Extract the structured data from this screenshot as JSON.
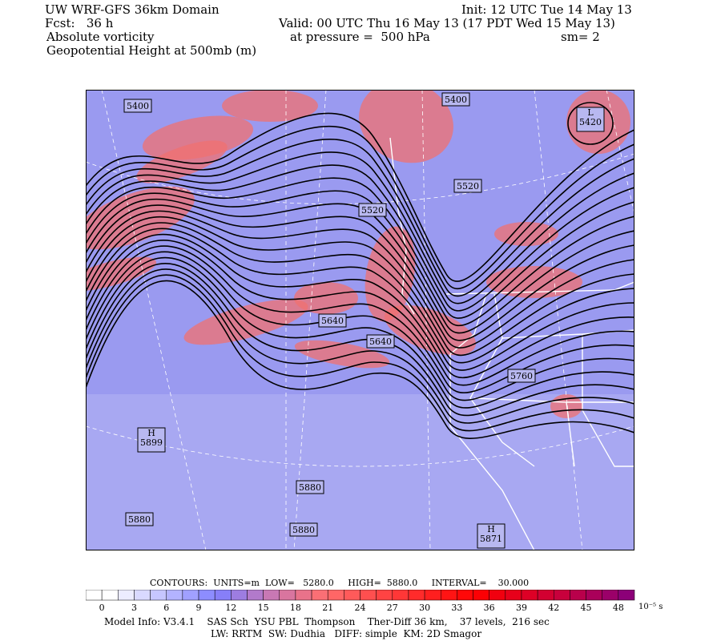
{
  "header": {
    "title": "UW WRF-GFS 36km Domain",
    "init": "Init: 12 UTC Tue 14 May 13",
    "fcst": "Fcst:   36 h",
    "valid": "Valid: 00 UTC Thu 16 May 13 (17 PDT Wed 15 May 13)",
    "field1": "Absolute vorticity",
    "pressure": "at pressure =  500 hPa",
    "smoothing": "sm= 2",
    "field2": "Geopotential Height at 500mb (m)"
  },
  "map": {
    "background_color": "#9a9af0",
    "contour_color": "#000000",
    "border_color": "#ffffff",
    "contour_labels": [
      "5400",
      "5400",
      "L\n5420",
      "5520",
      "5520",
      "5640",
      "5640",
      "5760",
      "H\n5899",
      "5880",
      "5880",
      "5880",
      "H\n5871"
    ]
  },
  "contours_info": {
    "units": "CONTOURS:  UNITS=m  LOW=   5280.0     HIGH=  5880.0     INTERVAL=    30.000"
  },
  "colorbar": {
    "ticks": [
      "0",
      "3",
      "6",
      "9",
      "12",
      "15",
      "18",
      "21",
      "24",
      "27",
      "30",
      "33",
      "36",
      "39",
      "42",
      "45",
      "48"
    ],
    "unit": "10⁻⁵ s⁻¹",
    "range": [
      -1.5,
      50
    ]
  },
  "footer": {
    "line1": "Model Info: V3.4.1    SAS Sch  YSU PBL  Thompson    Ther-Diff 36 km,    37 levels,  216 sec",
    "line2": "LW: RRTM  SW: Dudhia   DIFF: simple  KM: 2D Smagor"
  }
}
